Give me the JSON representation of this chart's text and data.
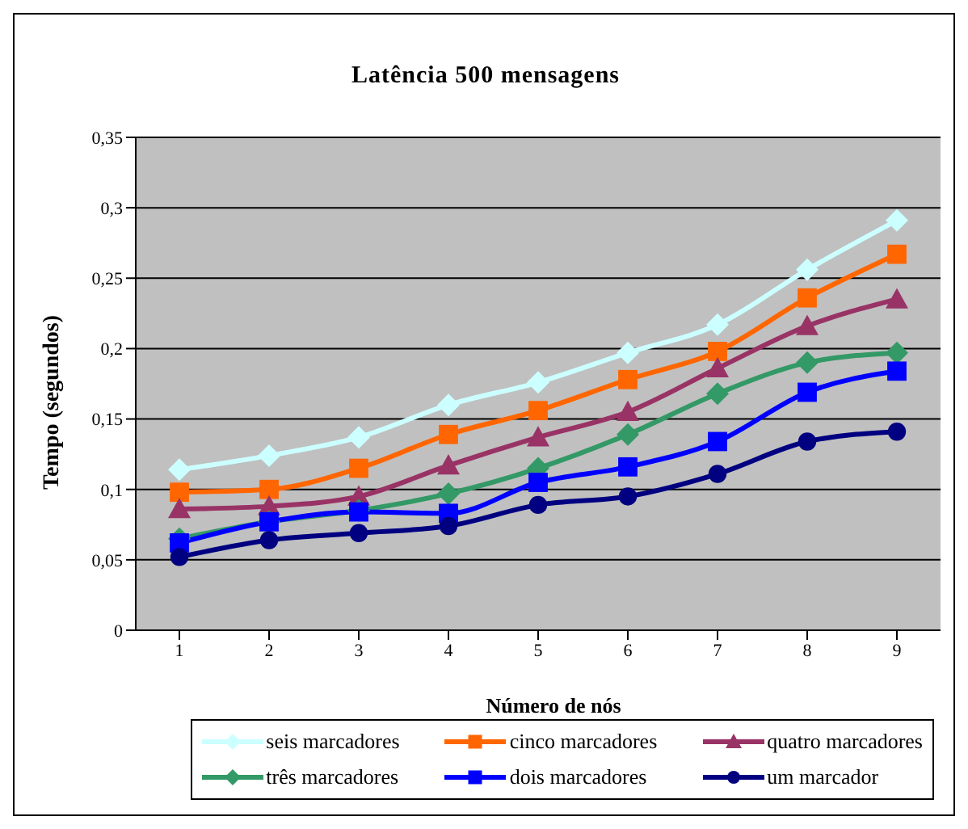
{
  "chart_data": {
    "type": "line",
    "title": "Latência 500 mensagens",
    "xlabel": "Número de nós",
    "ylabel": "Tempo (segundos)",
    "categories": [
      "1",
      "2",
      "3",
      "4",
      "5",
      "6",
      "7",
      "8",
      "9"
    ],
    "series": [
      {
        "name": "seis marcadores",
        "color": "#ccffff",
        "marker": "diamond",
        "values": [
          0.114,
          0.124,
          0.137,
          0.16,
          0.176,
          0.197,
          0.217,
          0.256,
          0.291
        ]
      },
      {
        "name": "cinco marcadores",
        "color": "#ff6600",
        "marker": "square",
        "values": [
          0.098,
          0.1,
          0.115,
          0.139,
          0.156,
          0.178,
          0.198,
          0.236,
          0.267
        ]
      },
      {
        "name": "quatro marcadores",
        "color": "#993366",
        "marker": "triangle",
        "values": [
          0.086,
          0.088,
          0.095,
          0.117,
          0.137,
          0.155,
          0.186,
          0.216,
          0.235
        ]
      },
      {
        "name": "três marcadores",
        "color": "#339966",
        "marker": "diamond",
        "values": [
          0.065,
          0.077,
          0.085,
          0.097,
          0.115,
          0.139,
          0.168,
          0.19,
          0.197
        ]
      },
      {
        "name": "dois marcadores",
        "color": "#0000ff",
        "marker": "square",
        "values": [
          0.062,
          0.077,
          0.084,
          0.083,
          0.105,
          0.116,
          0.134,
          0.169,
          0.184
        ]
      },
      {
        "name": "um marcador",
        "color": "#000080",
        "marker": "circle",
        "values": [
          0.052,
          0.064,
          0.069,
          0.074,
          0.089,
          0.095,
          0.111,
          0.134,
          0.141
        ]
      }
    ],
    "ylim": [
      0,
      0.35
    ],
    "yticks": [
      0,
      {
        "value": 0.05,
        "label": "0,05"
      },
      {
        "value": 0.1,
        "label": "0,1"
      },
      {
        "value": 0.15,
        "label": "0,15"
      },
      {
        "value": 0.2,
        "label": "0,2"
      },
      {
        "value": 0.25,
        "label": "0,25"
      },
      {
        "value": 0.3,
        "label": "0,3"
      },
      {
        "value": 0.35,
        "label": "0,35"
      }
    ],
    "grid": "y",
    "legend": "bottom",
    "line_style": "solid"
  }
}
